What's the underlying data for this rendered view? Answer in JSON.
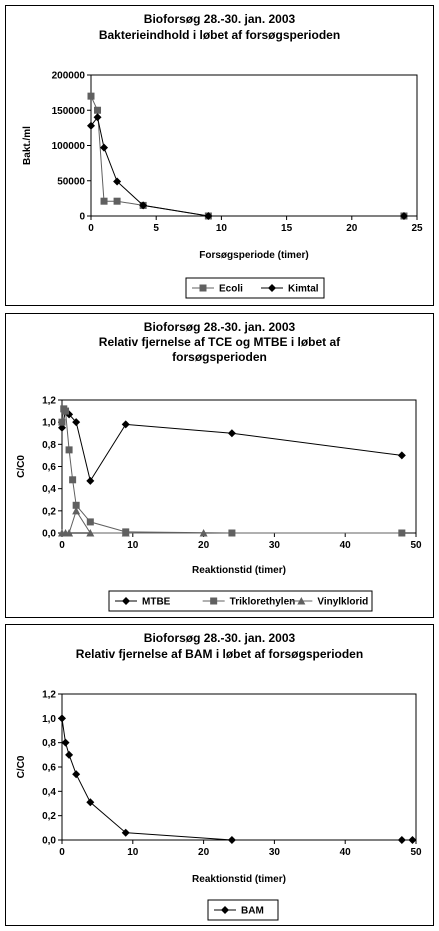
{
  "chart_data": [
    {
      "type": "line",
      "title": "Bioforsøg 28.-30. jan. 2003",
      "subtitle": "Bakterieindhold i løbet af forsøgsperioden",
      "xlabel": "Forsøgsperiode (timer)",
      "ylabel": "Bakt./ml",
      "xlim": [
        0,
        25
      ],
      "ylim": [
        0,
        200000
      ],
      "xticks": [
        "0",
        "5",
        "10",
        "15",
        "20",
        "25"
      ],
      "yticks": [
        "0",
        "50000",
        "100000",
        "150000",
        "200000"
      ],
      "grid": false,
      "legend": "bottom",
      "series": [
        {
          "name": "Ecoli",
          "marker": "square",
          "color": "#606060",
          "x": [
            0,
            0.5,
            1,
            2,
            4,
            9,
            24
          ],
          "y": [
            170000,
            150000,
            21000,
            21000,
            15000,
            0,
            0
          ]
        },
        {
          "name": "Kimtal",
          "marker": "diamond",
          "color": "#000000",
          "x": [
            0,
            0.5,
            1,
            2,
            4,
            9,
            24
          ],
          "y": [
            128000,
            140000,
            97000,
            49000,
            15000,
            0,
            0
          ]
        }
      ]
    },
    {
      "type": "line",
      "title": "Bioforsøg 28.-30. jan. 2003",
      "subtitle": "Relativ fjernelse af TCE og MTBE i løbet af forsøgsperioden",
      "subtitle_lines": [
        "Relativ fjernelse af TCE og MTBE i løbet af",
        "forsøgsperioden"
      ],
      "xlabel": "Reaktionstid (timer)",
      "ylabel": "C/C0",
      "xlim": [
        0,
        50
      ],
      "ylim": [
        0,
        1.2
      ],
      "xticks": [
        "0",
        "10",
        "20",
        "30",
        "40",
        "50"
      ],
      "yticks": [
        "0,0",
        "0,2",
        "0,4",
        "0,6",
        "0,8",
        "1,0",
        "1,2"
      ],
      "grid": false,
      "legend": "bottom",
      "series": [
        {
          "name": "MTBE",
          "marker": "diamond",
          "color": "#000000",
          "x": [
            0,
            0.5,
            1,
            2,
            4,
            9,
            24,
            48
          ],
          "y": [
            0.95,
            1.1,
            1.07,
            1.0,
            0.47,
            0.98,
            0.9,
            0.7
          ]
        },
        {
          "name": "Triklorethylen",
          "marker": "square",
          "color": "#606060",
          "x": [
            0,
            0.25,
            0.5,
            1,
            1.5,
            2,
            4,
            9,
            24,
            48
          ],
          "y": [
            1.0,
            1.12,
            1.1,
            0.75,
            0.48,
            0.25,
            0.1,
            0.01,
            0.0,
            0.0
          ]
        },
        {
          "name": "Vinylklorid",
          "marker": "triangle",
          "color": "#606060",
          "x": [
            0,
            0.5,
            1,
            2,
            4,
            9,
            20
          ],
          "y": [
            0.0,
            0.0,
            0.0,
            0.2,
            0.0,
            0.0,
            0.0
          ]
        }
      ]
    },
    {
      "type": "line",
      "title": "Bioforsøg 28.-30. jan. 2003",
      "subtitle": "Relativ fjernelse af BAM i løbet af forsøgsperioden",
      "xlabel": "Reaktionstid (timer)",
      "ylabel": "C/C0",
      "xlim": [
        0,
        50
      ],
      "ylim": [
        0,
        1.2
      ],
      "xticks": [
        "0",
        "10",
        "20",
        "30",
        "40",
        "50"
      ],
      "yticks": [
        "0,0",
        "0,2",
        "0,4",
        "0,6",
        "0,8",
        "1,0",
        "1,2"
      ],
      "grid": false,
      "legend": "bottom",
      "series": [
        {
          "name": "BAM",
          "marker": "diamond",
          "color": "#000000",
          "x": [
            0,
            0.5,
            1,
            2,
            4,
            9,
            24,
            48,
            49.5
          ],
          "y": [
            1.0,
            0.8,
            0.7,
            0.54,
            0.31,
            0.06,
            0.0,
            0.0,
            0.0
          ]
        }
      ]
    }
  ]
}
